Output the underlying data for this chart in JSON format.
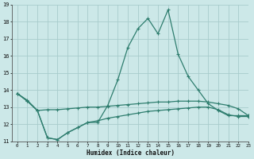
{
  "xlabel": "Humidex (Indice chaleur)",
  "bg_color": "#cce8e8",
  "line_color": "#2e7d6e",
  "grid_color": "#a8cccc",
  "x": [
    0,
    1,
    2,
    3,
    4,
    5,
    6,
    7,
    8,
    9,
    10,
    11,
    12,
    13,
    14,
    15,
    16,
    17,
    18,
    19,
    20,
    21,
    22,
    23
  ],
  "line1": [
    13.8,
    13.4,
    12.8,
    11.2,
    11.1,
    11.5,
    11.8,
    12.1,
    12.1,
    13.1,
    14.6,
    16.5,
    17.6,
    18.2,
    17.3,
    18.7,
    16.1,
    14.8,
    14.0,
    13.2,
    12.8,
    12.5,
    12.5,
    12.5
  ],
  "line2": [
    13.8,
    13.35,
    12.8,
    12.85,
    12.85,
    12.9,
    12.95,
    13.0,
    13.0,
    13.05,
    13.1,
    13.15,
    13.2,
    13.25,
    13.3,
    13.3,
    13.35,
    13.35,
    13.35,
    13.3,
    13.2,
    13.1,
    12.9,
    12.5
  ],
  "line3": [
    13.8,
    13.35,
    12.8,
    11.2,
    11.1,
    11.5,
    11.8,
    12.1,
    12.2,
    12.35,
    12.45,
    12.55,
    12.65,
    12.75,
    12.8,
    12.85,
    12.9,
    12.95,
    13.0,
    13.0,
    12.85,
    12.55,
    12.45,
    12.45
  ],
  "ylim": [
    11,
    19
  ],
  "xlim": [
    -0.5,
    23
  ],
  "yticks": [
    11,
    12,
    13,
    14,
    15,
    16,
    17,
    18,
    19
  ],
  "xticks": [
    0,
    1,
    2,
    3,
    4,
    5,
    6,
    7,
    8,
    9,
    10,
    11,
    12,
    13,
    14,
    15,
    16,
    17,
    18,
    19,
    20,
    21,
    22,
    23
  ]
}
